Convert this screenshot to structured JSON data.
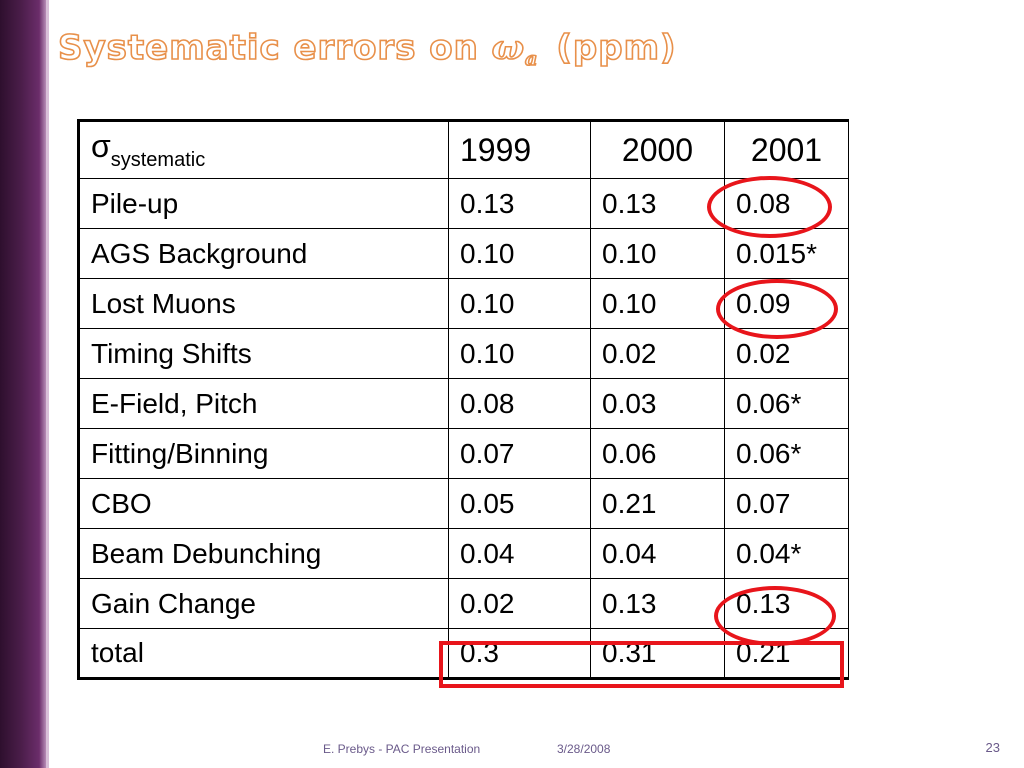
{
  "slide": {
    "title_prefix": "Systematic errors on ",
    "title_omega": "ω",
    "title_sub": "a",
    "title_suffix": "(ppm)",
    "accent_color": "#e8904a",
    "sidebar_color": "#4a1d49",
    "highlight_color": "#e8151b"
  },
  "table": {
    "header": {
      "sigma": "σ",
      "sigma_sub": "systematic",
      "years": [
        "1999",
        "2000",
        "2001"
      ]
    },
    "rows": [
      {
        "label": "Pile-up",
        "values": [
          "0.13",
          "0.13",
          "0.08"
        ]
      },
      {
        "label": "AGS Background",
        "values": [
          "0.10",
          "0.10",
          "0.015*"
        ]
      },
      {
        "label": "Lost Muons",
        "values": [
          "0.10",
          "0.10",
          "0.09"
        ]
      },
      {
        "label": "Timing Shifts",
        "values": [
          "0.10",
          "0.02",
          "0.02"
        ]
      },
      {
        "label": "E-Field, Pitch",
        "values": [
          "0.08",
          "0.03",
          "0.06*"
        ]
      },
      {
        "label": "Fitting/Binning",
        "values": [
          "0.07",
          "0.06",
          "0.06*"
        ]
      },
      {
        "label": "CBO",
        "values": [
          "0.05",
          "0.21",
          "0.07"
        ]
      },
      {
        "label": "Beam Debunching",
        "values": [
          "0.04",
          "0.04",
          "0.04*"
        ]
      },
      {
        "label": "Gain Change",
        "values": [
          "0.02",
          "0.13",
          "0.13"
        ]
      },
      {
        "label": "total",
        "values": [
          "0.3",
          "0.31",
          "0.21"
        ]
      }
    ]
  },
  "footer": {
    "presenter": "E. Prebys - PAC Presentation",
    "date": "3/28/2008",
    "page_number": "23"
  }
}
